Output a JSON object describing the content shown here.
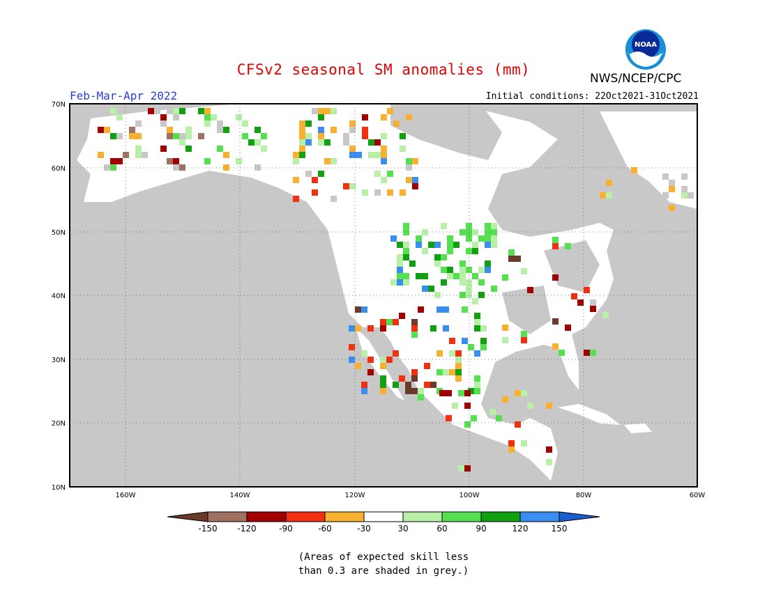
{
  "title": "CFSv2 seasonal SM anomalies (mm)",
  "agency": "NWS/NCEP/CPC",
  "season": "Feb-Mar-Apr 2022",
  "initial_conditions": "Initial conditions: 22Oct2021-31Oct2021",
  "logo_text": "NOAA",
  "footnote": {
    "line1": "(Areas of expected skill less",
    "line2": "than 0.3 are shaded in grey.)"
  },
  "lat_labels": [
    "70N",
    "60N",
    "50N",
    "40N",
    "30N",
    "20N",
    "10N"
  ],
  "lon_labels": [
    "160W",
    "140W",
    "120W",
    "100W",
    "80W",
    "60W"
  ],
  "colorbar": {
    "labels": [
      "-150",
      "-120",
      "-90",
      "-60",
      "-30",
      "30",
      "60",
      "90",
      "120",
      "150"
    ],
    "colors": [
      "#6b3a2a",
      "#a07060",
      "#a00000",
      "#f03010",
      "#f8b030",
      "#ffffff",
      "#b8f0a8",
      "#55e050",
      "#10a010",
      "#3a8ef0",
      "#1a5ed0"
    ]
  },
  "colors": {
    "grey_mask": "#c8c8c8",
    "land_white": "#ffffff",
    "coastline": "#000000",
    "title_red": "#e00000",
    "season_blue": "#2a3cd0"
  }
}
